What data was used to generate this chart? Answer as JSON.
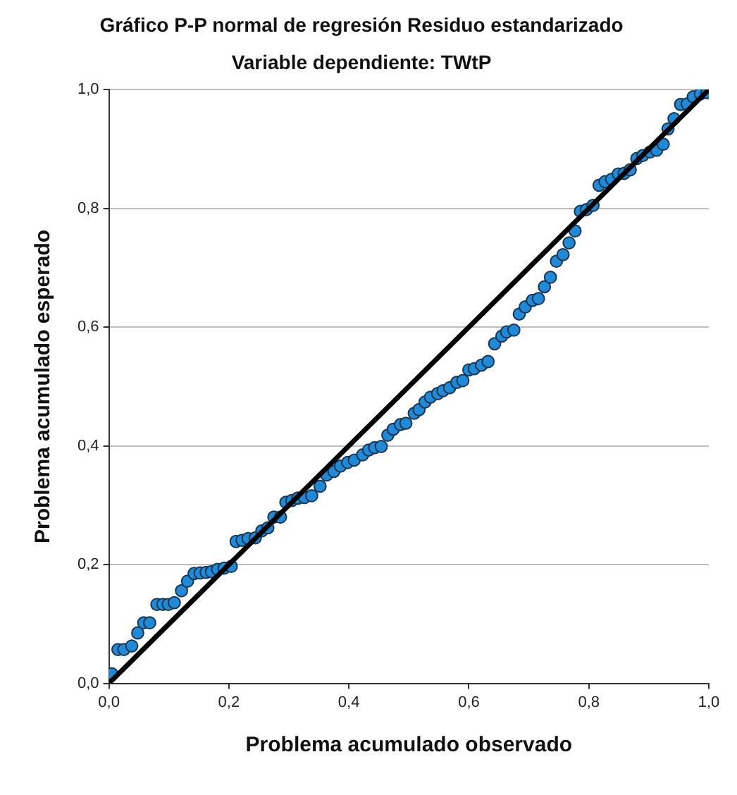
{
  "chart_data": {
    "type": "scatter",
    "title": "Gráfico P-P normal de regresión Residuo estandarizado",
    "subtitle": "Variable dependiente: TWtP",
    "xlabel": "Problema acumulado observado",
    "ylabel": "Problema acumulado esperado",
    "series": [
      {
        "type": "scatter",
        "marker": "circle",
        "color": "#1f8ad8",
        "x": [
          0.005,
          0.015,
          0.025,
          0.038,
          0.048,
          0.058,
          0.068,
          0.08,
          0.09,
          0.099,
          0.109,
          0.121,
          0.131,
          0.142,
          0.152,
          0.162,
          0.171,
          0.181,
          0.192,
          0.204,
          0.212,
          0.222,
          0.232,
          0.244,
          0.255,
          0.265,
          0.275,
          0.286,
          0.295,
          0.305,
          0.315,
          0.326,
          0.338,
          0.352,
          0.363,
          0.375,
          0.386,
          0.398,
          0.409,
          0.423,
          0.433,
          0.443,
          0.454,
          0.465,
          0.474,
          0.486,
          0.495,
          0.509,
          0.517,
          0.527,
          0.536,
          0.548,
          0.557,
          0.568,
          0.58,
          0.59,
          0.6,
          0.609,
          0.621,
          0.632,
          0.643,
          0.655,
          0.663,
          0.675,
          0.684,
          0.694,
          0.706,
          0.716,
          0.726,
          0.736,
          0.746,
          0.757,
          0.767,
          0.777,
          0.786,
          0.796,
          0.807,
          0.817,
          0.827,
          0.838,
          0.849,
          0.859,
          0.869,
          0.88,
          0.89,
          0.902,
          0.913,
          0.924,
          0.932,
          0.942,
          0.953,
          0.964,
          0.974,
          0.986,
          0.997
        ],
        "values": [
          0.016,
          0.057,
          0.057,
          0.063,
          0.085,
          0.102,
          0.102,
          0.133,
          0.133,
          0.133,
          0.136,
          0.156,
          0.172,
          0.185,
          0.186,
          0.187,
          0.188,
          0.192,
          0.194,
          0.197,
          0.239,
          0.241,
          0.244,
          0.245,
          0.257,
          0.262,
          0.28,
          0.28,
          0.305,
          0.308,
          0.312,
          0.313,
          0.316,
          0.332,
          0.351,
          0.357,
          0.366,
          0.372,
          0.376,
          0.385,
          0.393,
          0.397,
          0.399,
          0.418,
          0.428,
          0.436,
          0.438,
          0.455,
          0.461,
          0.474,
          0.482,
          0.488,
          0.493,
          0.498,
          0.507,
          0.51,
          0.528,
          0.53,
          0.536,
          0.542,
          0.572,
          0.585,
          0.592,
          0.595,
          0.622,
          0.634,
          0.645,
          0.648,
          0.668,
          0.684,
          0.711,
          0.722,
          0.742,
          0.762,
          0.795,
          0.798,
          0.805,
          0.839,
          0.845,
          0.849,
          0.858,
          0.859,
          0.865,
          0.884,
          0.889,
          0.895,
          0.898,
          0.908,
          0.934,
          0.951,
          0.975,
          0.976,
          0.988,
          0.993,
          0.995
        ]
      },
      {
        "type": "line",
        "marker": "none",
        "color": "#000000",
        "x": [
          0,
          1
        ],
        "values": [
          0,
          1
        ]
      }
    ],
    "xlim": [
      0,
      1
    ],
    "ylim": [
      0,
      1
    ],
    "xticks": [
      {
        "value": 0,
        "label": "0,0"
      },
      {
        "value": 0.2,
        "label": "0,2"
      },
      {
        "value": 0.4,
        "label": "0,4"
      },
      {
        "value": 0.6,
        "label": "0,6"
      },
      {
        "value": 0.8,
        "label": "0,8"
      },
      {
        "value": 1,
        "label": "1,0"
      }
    ],
    "yticks": [
      {
        "value": 0,
        "label": "0,0"
      },
      {
        "value": 0.2,
        "label": "0,2"
      },
      {
        "value": 0.4,
        "label": "0,4"
      },
      {
        "value": 0.6,
        "label": "0,6"
      },
      {
        "value": 0.8,
        "label": "0,8"
      },
      {
        "value": 1,
        "label": "1,0"
      }
    ],
    "grid": "y",
    "line_style": "solid",
    "legend": false
  }
}
